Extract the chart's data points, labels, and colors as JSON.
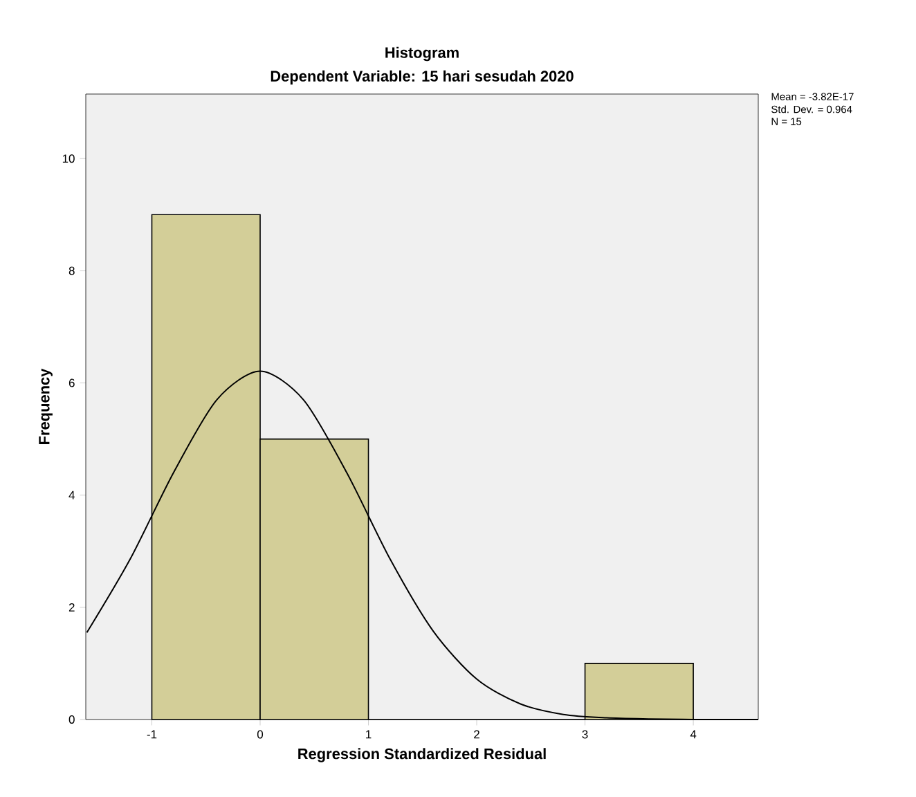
{
  "chart_data": {
    "type": "histogram",
    "title": "Histogram",
    "subtitle": "Dependent Variable: 15 hari sesudah 2020",
    "xlabel": "Regression Standardized Residual",
    "ylabel": "Frequency",
    "bins": [
      -1,
      0,
      1,
      2,
      3,
      4
    ],
    "values": [
      9,
      5,
      0,
      0,
      1
    ],
    "color": "#d3ce98",
    "series": [
      {
        "type": "line",
        "color": "#000000",
        "x": [
          -1.6,
          -1.2,
          -0.8,
          -0.4,
          0,
          0.4,
          0.8,
          1.2,
          1.6,
          2.0,
          2.4,
          2.8,
          3.2,
          3.6,
          4.0,
          4.6
        ],
        "values": [
          1.55,
          2.86,
          4.4,
          5.7,
          6.21,
          5.7,
          4.4,
          2.86,
          1.57,
          0.72,
          0.28,
          0.09,
          0.03,
          0.01,
          0,
          0
        ]
      }
    ],
    "xlim": [
      -1.61,
      4.6
    ],
    "ylim": [
      0,
      11.15
    ],
    "xticks": [
      -1,
      0,
      1,
      2,
      3,
      4
    ],
    "yticks": [
      0,
      2,
      4,
      6,
      8,
      10
    ],
    "annotations": [
      "Mean = -3.82E-17",
      "Std. Dev. = 0.964",
      "N = 15"
    ]
  }
}
